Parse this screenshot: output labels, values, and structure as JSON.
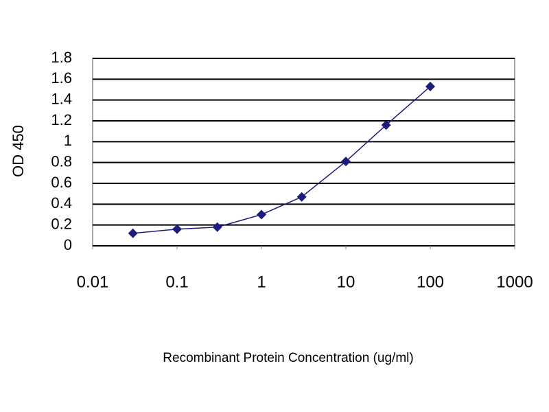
{
  "chart_data": {
    "type": "line",
    "x_label": "Recombinant Protein Concentration (ug/ml)",
    "y_label": "OD 450",
    "x": [
      0.03,
      0.1,
      0.3,
      1,
      3,
      10,
      30,
      100
    ],
    "series": [
      {
        "name": "OD 450",
        "color": "#1c1c7c",
        "values": [
          0.12,
          0.16,
          0.18,
          0.3,
          0.47,
          0.81,
          1.16,
          1.53
        ]
      }
    ],
    "x_log": true,
    "xlim": [
      0.01,
      1000
    ],
    "xticks": [
      0.01,
      0.1,
      1,
      10,
      100,
      1000
    ],
    "ylim": [
      0,
      1.8
    ],
    "yticks": [
      0,
      0.2,
      0.4,
      0.6,
      0.8,
      1,
      1.2,
      1.4,
      1.6,
      1.8
    ],
    "grid": true
  }
}
